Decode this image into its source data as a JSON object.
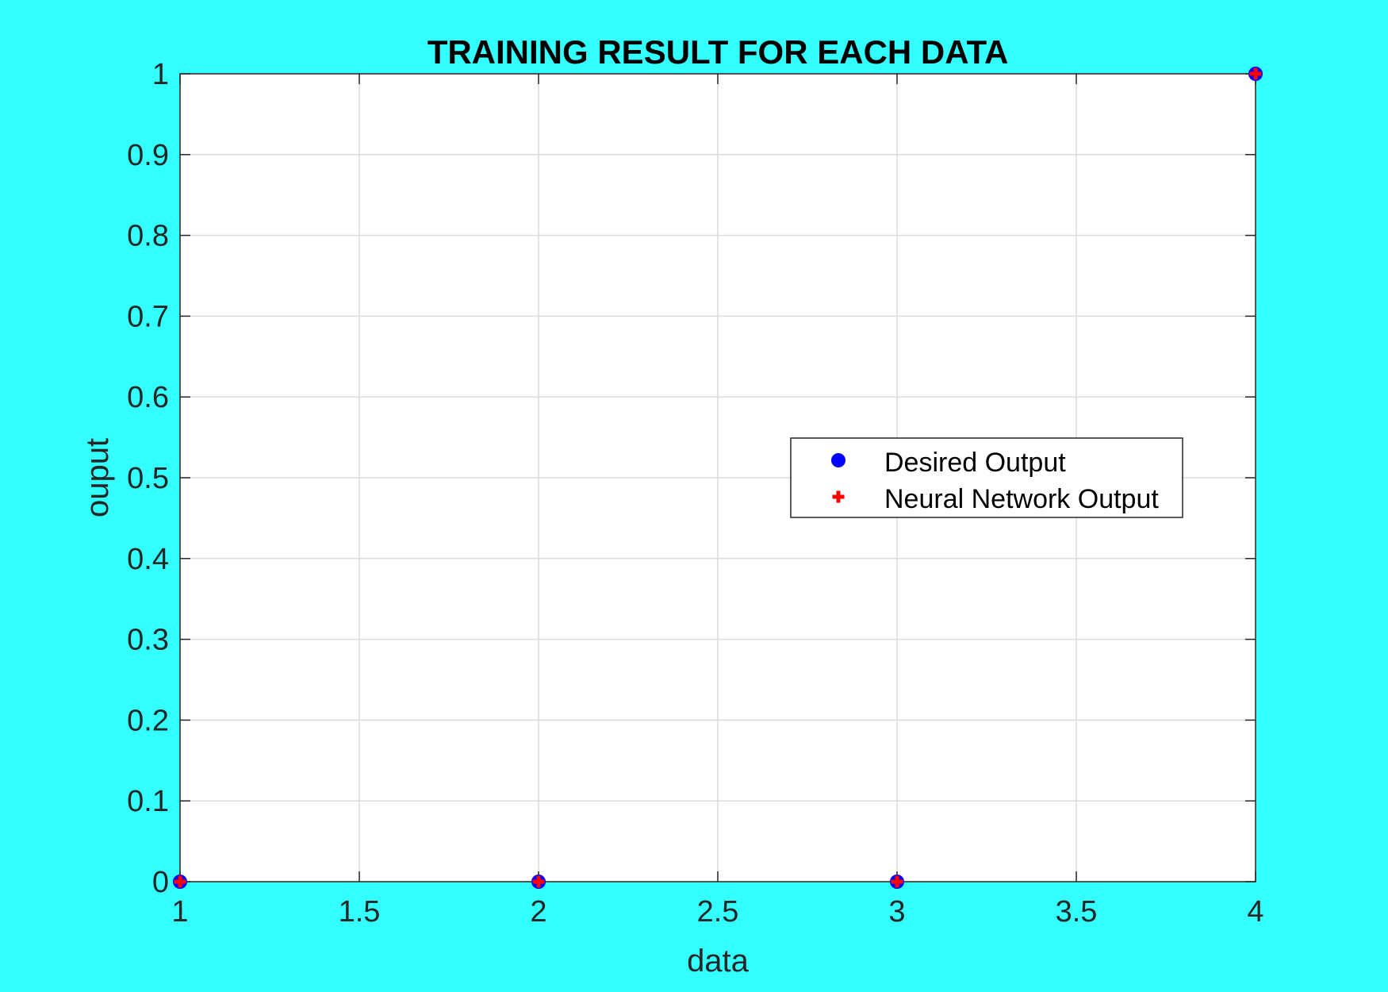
{
  "chart_data": {
    "type": "scatter",
    "title": "TRAINING RESULT FOR EACH DATA",
    "xlabel": "data",
    "ylabel": "ouput",
    "xlim": [
      1,
      4
    ],
    "ylim": [
      0,
      1
    ],
    "x_ticks": [
      "1",
      "1.5",
      "2",
      "2.5",
      "3",
      "3.5",
      "4"
    ],
    "y_ticks": [
      "0",
      "0.1",
      "0.2",
      "0.3",
      "0.4",
      "0.5",
      "0.6",
      "0.7",
      "0.8",
      "0.9",
      "1"
    ],
    "grid": true,
    "legend_position": "center-right",
    "series": [
      {
        "name": "Desired Output",
        "marker": "circle",
        "color": "#0000FF",
        "x": [
          1,
          2,
          3,
          4
        ],
        "y": [
          0,
          0,
          0,
          1
        ]
      },
      {
        "name": "Neural Network Output",
        "marker": "plus",
        "color": "#FF0000",
        "x": [
          1,
          2,
          3,
          4
        ],
        "y": [
          0,
          0,
          0,
          1
        ]
      }
    ]
  },
  "colors": {
    "background": "#33FFFF",
    "plot_area": "#FFFFFF"
  }
}
